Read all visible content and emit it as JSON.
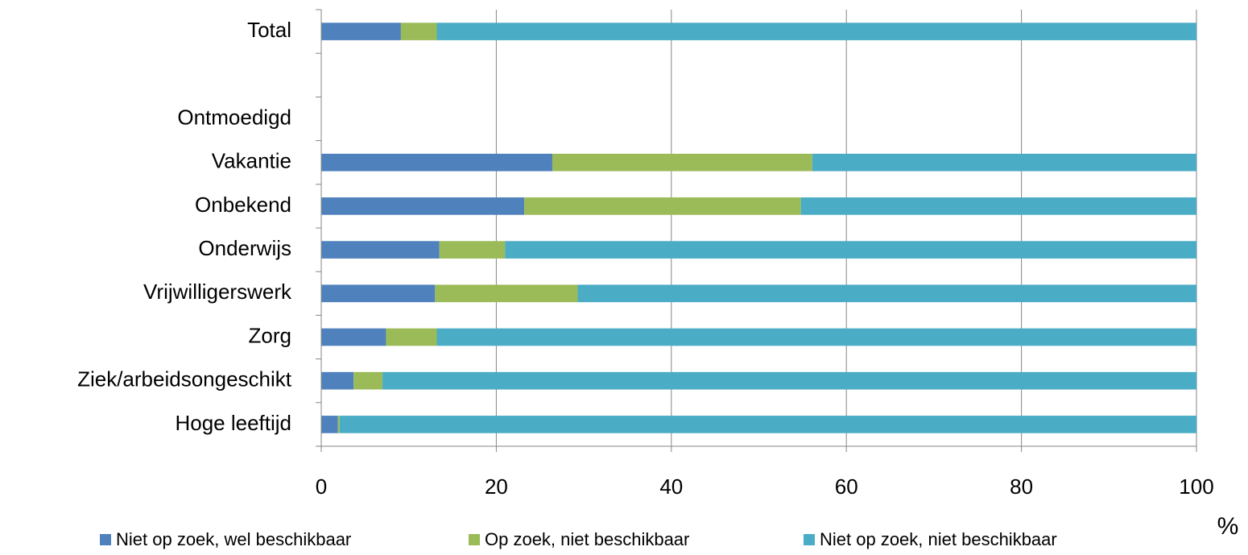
{
  "chart_data": {
    "type": "stacked_barh",
    "categories": [
      "Total",
      null,
      "Ontmoedigd",
      "Vakantie",
      "Onbekend",
      "Onderwijs",
      "Vrijwilligerswerk",
      "Zorg",
      "Ziek/arbeidsongeschikt",
      "Hoge leeftijd"
    ],
    "series": [
      {
        "name": "Niet op zoek, wel beschikbaar",
        "color": "#4f81bd",
        "values": [
          9.1,
          null,
          null,
          26.4,
          23.2,
          13.5,
          13.0,
          7.4,
          3.7,
          1.9
        ]
      },
      {
        "name": "Op zoek, niet beschikbaar",
        "color": "#9bbb59",
        "values": [
          4.1,
          null,
          null,
          29.7,
          31.6,
          7.5,
          16.3,
          5.8,
          3.3,
          0.2
        ]
      },
      {
        "name": "Niet op zoek, niet beschikbaar",
        "color": "#4bacc6",
        "values": [
          86.8,
          null,
          null,
          43.9,
          45.2,
          79.0,
          70.7,
          86.8,
          93.0,
          97.9
        ]
      }
    ],
    "xlabel": "%",
    "xlim": [
      0,
      100
    ],
    "xticks": [
      0,
      20,
      40,
      60,
      80,
      100
    ],
    "grid": true,
    "legend": "bottom"
  }
}
